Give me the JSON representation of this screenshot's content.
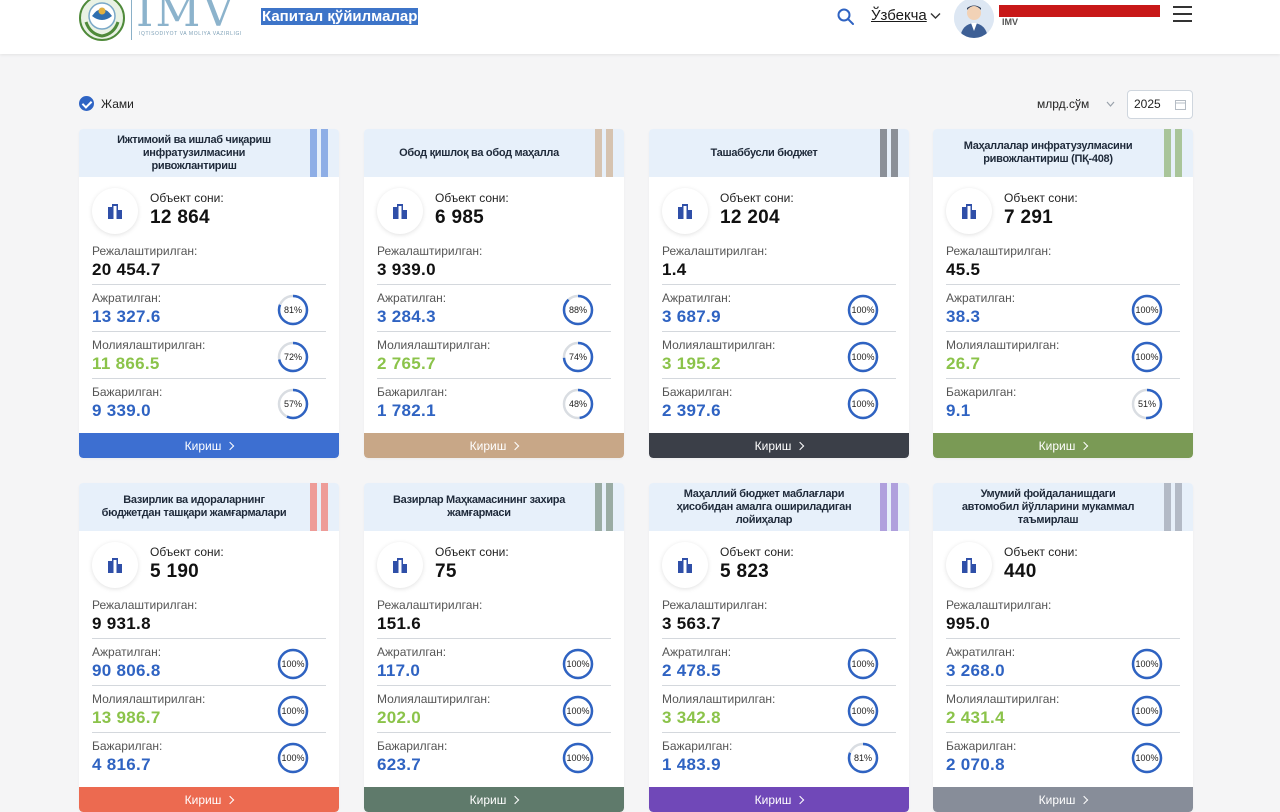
{
  "header": {
    "logo_text": "IMV",
    "logo_subtitle": "IQTISODIYOT VA MOLIYA VAZIRLIGI",
    "page_title": "Капитал қўйилмалар",
    "language": "Ўзбекча",
    "user_org": "IMV",
    "icons": {
      "search": "search-icon",
      "menu": "hamburger-menu-icon",
      "lang": "chevron-down-icon"
    }
  },
  "filters": {
    "total_label": "Жами",
    "total_checked": true,
    "unit": "млрд.сўм",
    "year": "2025"
  },
  "labels": {
    "objects": "Объект сони:",
    "planned": "Режалаштирилган:",
    "allocated": "Ажратилган:",
    "financed": "Молиялаштирилган:",
    "completed": "Бажарилган:",
    "enter": "Кириш"
  },
  "colors": {
    "value_blue": "#2f63c2",
    "value_green": "#8bc34a",
    "gauge_track": "#d9dde2",
    "gauge_fill": "#2f63c2"
  },
  "cards": [
    {
      "title": "Ижтимоий ва ишлаб чиқариш инфратузилмасини ривожлантириш",
      "accent": "#8eaee6",
      "button_color": "#3d6fd1",
      "objects": "12 864",
      "planned": "20 454.7",
      "allocated": "13 327.6",
      "allocated_pct": "81%",
      "allocated_frac": 0.81,
      "financed": "11 866.5",
      "financed_pct": "72%",
      "financed_frac": 0.72,
      "completed": "9 339.0",
      "completed_pct": "57%",
      "completed_frac": 0.57
    },
    {
      "title": "Обод қишлоқ ва обод маҳалла",
      "accent": "#d6c3b0",
      "button_color": "#c8a787",
      "objects": "6 985",
      "planned": "3 939.0",
      "allocated": "3 284.3",
      "allocated_pct": "88%",
      "allocated_frac": 0.88,
      "financed": "2 765.7",
      "financed_pct": "74%",
      "financed_frac": 0.74,
      "completed": "1 782.1",
      "completed_pct": "48%",
      "completed_frac": 0.48
    },
    {
      "title": "Ташаббусли бюджет",
      "accent": "#8b9098",
      "button_color": "#3b3f48",
      "objects": "12 204",
      "planned": "1.4",
      "allocated": "3 687.9",
      "allocated_pct": "100%",
      "allocated_frac": 1,
      "financed": "3 195.2",
      "financed_pct": "100%",
      "financed_frac": 1,
      "completed": "2 397.6",
      "completed_pct": "100%",
      "completed_frac": 1
    },
    {
      "title": "Маҳаллалар инфратузулмасини ривожлантириш (ПҚ-408)",
      "accent": "#a9c59a",
      "button_color": "#7a9a55",
      "objects": "7 291",
      "planned": "45.5",
      "allocated": "38.3",
      "allocated_pct": "100%",
      "allocated_frac": 1,
      "financed": "26.7",
      "financed_pct": "100%",
      "financed_frac": 1,
      "completed": "9.1",
      "completed_pct": "51%",
      "completed_frac": 0.51
    },
    {
      "title": "Вазирлик ва идораларнинг бюджетдан ташқари жамғармалари",
      "accent": "#ee9c98",
      "button_color": "#ec6a50",
      "objects": "5 190",
      "planned": "9 931.8",
      "allocated": "90 806.8",
      "allocated_pct": "100%",
      "allocated_frac": 1,
      "financed": "13 986.7",
      "financed_pct": "100%",
      "financed_frac": 1,
      "completed": "4 816.7",
      "completed_pct": "100%",
      "completed_frac": 1
    },
    {
      "title": "Вазирлар Маҳкамасининг захира жамғармаси",
      "accent": "#9aaca4",
      "button_color": "#5f7a6b",
      "objects": "75",
      "planned": "151.6",
      "allocated": "117.0",
      "allocated_pct": "100%",
      "allocated_frac": 1,
      "financed": "202.0",
      "financed_pct": "100%",
      "financed_frac": 1,
      "completed": "623.7",
      "completed_pct": "100%",
      "completed_frac": 1
    },
    {
      "title": "Маҳаллий бюджет маблағлари ҳисобидан амалга ошириладиган лойиҳалар",
      "accent": "#b0a0dd",
      "button_color": "#7048b8",
      "objects": "5 823",
      "planned": "3 563.7",
      "allocated": "2 478.5",
      "allocated_pct": "100%",
      "allocated_frac": 1,
      "financed": "3 342.8",
      "financed_pct": "100%",
      "financed_frac": 1,
      "completed": "1 483.9",
      "completed_pct": "81%",
      "completed_frac": 0.81
    },
    {
      "title": "Умумий фойдаланишдаги автомобил йўлларини мукаммал таъмирлаш",
      "accent": "#b3bac6",
      "button_color": "#878d99",
      "objects": "440",
      "planned": "995.0",
      "allocated": "3 268.0",
      "allocated_pct": "100%",
      "allocated_frac": 1,
      "financed": "2 431.4",
      "financed_pct": "100%",
      "financed_frac": 1,
      "completed": "2 070.8",
      "completed_pct": "100%",
      "completed_frac": 1
    }
  ]
}
